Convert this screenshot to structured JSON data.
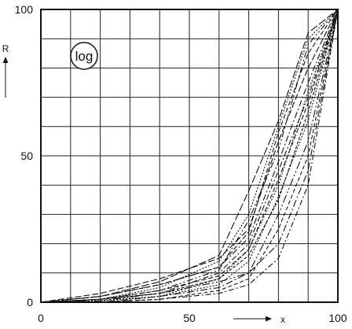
{
  "chart_data": {
    "type": "line",
    "title": "",
    "xlabel": "x",
    "ylabel": "R",
    "badge": "log",
    "xlim": [
      0,
      100
    ],
    "ylim": [
      0,
      100
    ],
    "grid": true,
    "x_ticks": [
      0,
      50,
      100
    ],
    "y_ticks": [
      0,
      50,
      100
    ],
    "series": [
      {
        "dash": "8,3,2,3",
        "points": [
          [
            0,
            0
          ],
          [
            20,
            2
          ],
          [
            40,
            6
          ],
          [
            60,
            12
          ],
          [
            70,
            22
          ],
          [
            80,
            48
          ],
          [
            90,
            75
          ],
          [
            100,
            100
          ]
        ]
      },
      {
        "dash": "6,3",
        "points": [
          [
            0,
            0
          ],
          [
            20,
            1
          ],
          [
            40,
            4
          ],
          [
            60,
            9
          ],
          [
            70,
            18
          ],
          [
            80,
            42
          ],
          [
            90,
            68
          ],
          [
            100,
            100
          ]
        ]
      },
      {
        "dash": "2,2",
        "points": [
          [
            0,
            0
          ],
          [
            20,
            0.5
          ],
          [
            40,
            2
          ],
          [
            60,
            6
          ],
          [
            70,
            14
          ],
          [
            80,
            36
          ],
          [
            90,
            62
          ],
          [
            100,
            100
          ]
        ]
      },
      {
        "dash": "10,3,2,3,2,3",
        "points": [
          [
            0,
            0
          ],
          [
            20,
            0.5
          ],
          [
            40,
            3
          ],
          [
            60,
            7
          ],
          [
            70,
            10
          ],
          [
            80,
            30
          ],
          [
            90,
            55
          ],
          [
            100,
            100
          ]
        ]
      },
      {
        "dash": "8,3",
        "points": [
          [
            0,
            0
          ],
          [
            20,
            3
          ],
          [
            40,
            8
          ],
          [
            60,
            15
          ],
          [
            70,
            25
          ],
          [
            80,
            55
          ],
          [
            90,
            80
          ],
          [
            100,
            100
          ]
        ]
      },
      {
        "dash": "2,2",
        "points": [
          [
            0,
            0
          ],
          [
            20,
            0.5
          ],
          [
            40,
            2
          ],
          [
            60,
            8
          ],
          [
            70,
            18
          ],
          [
            80,
            40
          ],
          [
            90,
            72
          ],
          [
            100,
            100
          ]
        ]
      },
      {
        "dash": "7,3,2,3",
        "points": [
          [
            0,
            0
          ],
          [
            20,
            1
          ],
          [
            40,
            3
          ],
          [
            60,
            10
          ],
          [
            70,
            20
          ],
          [
            80,
            45
          ],
          [
            90,
            70
          ],
          [
            100,
            100
          ]
        ]
      },
      {
        "dash": "5,3",
        "points": [
          [
            0,
            0
          ],
          [
            20,
            0
          ],
          [
            40,
            1
          ],
          [
            60,
            4
          ],
          [
            70,
            8
          ],
          [
            80,
            25
          ],
          [
            90,
            50
          ],
          [
            100,
            100
          ]
        ]
      },
      {
        "dash": "9,3,2,3",
        "points": [
          [
            0,
            0
          ],
          [
            20,
            0
          ],
          [
            40,
            2
          ],
          [
            60,
            5
          ],
          [
            70,
            10
          ],
          [
            80,
            20
          ],
          [
            90,
            45
          ],
          [
            100,
            100
          ]
        ]
      },
      {
        "dash": "6,3",
        "points": [
          [
            0,
            0
          ],
          [
            20,
            2
          ],
          [
            40,
            6
          ],
          [
            60,
            12
          ],
          [
            70,
            24
          ],
          [
            80,
            58
          ],
          [
            90,
            85
          ],
          [
            100,
            100
          ]
        ]
      },
      {
        "dash": "2,2",
        "points": [
          [
            0,
            0
          ],
          [
            20,
            1
          ],
          [
            40,
            5
          ],
          [
            60,
            14
          ],
          [
            70,
            30
          ],
          [
            80,
            60
          ],
          [
            90,
            90
          ],
          [
            100,
            100
          ]
        ]
      },
      {
        "dash": "8,3,2,3,2,3",
        "points": [
          [
            0,
            0
          ],
          [
            20,
            1
          ],
          [
            40,
            4
          ],
          [
            60,
            11
          ],
          [
            70,
            28
          ],
          [
            80,
            52
          ],
          [
            90,
            88
          ],
          [
            100,
            100
          ]
        ]
      },
      {
        "dash": "10,3",
        "points": [
          [
            0,
            0
          ],
          [
            20,
            2
          ],
          [
            40,
            7
          ],
          [
            60,
            16
          ],
          [
            70,
            38
          ],
          [
            80,
            62
          ],
          [
            90,
            92
          ],
          [
            100,
            100
          ]
        ]
      },
      {
        "dash": "7,3,2,3",
        "points": [
          [
            0,
            0
          ],
          [
            20,
            0
          ],
          [
            40,
            1
          ],
          [
            60,
            3
          ],
          [
            70,
            6
          ],
          [
            80,
            15
          ],
          [
            90,
            40
          ],
          [
            100,
            100
          ]
        ]
      },
      {
        "dash": "4,2",
        "points": [
          [
            0,
            0
          ],
          [
            20,
            1
          ],
          [
            40,
            3
          ],
          [
            60,
            8
          ],
          [
            70,
            16
          ],
          [
            80,
            35
          ],
          [
            90,
            65
          ],
          [
            100,
            100
          ]
        ]
      }
    ]
  }
}
